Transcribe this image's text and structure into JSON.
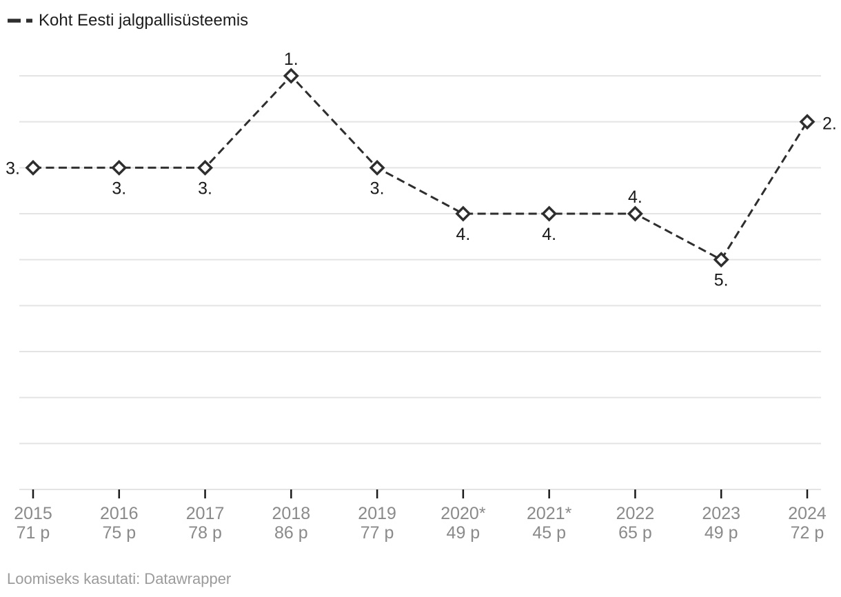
{
  "legend": {
    "label": "Koht Eesti jalgpallisüsteemis"
  },
  "footer": {
    "text": "Loomiseks kasutati: Datawrapper"
  },
  "colors": {
    "line": "#2e2e2e",
    "marker_fill": "#ffffff",
    "point_label": "#1a1a1a",
    "axis_label": "#8a8a8a",
    "gridline": "#e4e4e4",
    "tick": "#1a1a1a",
    "legend_text": "#1d1d1d",
    "footer_text": "#9b9b9b",
    "background": "#ffffff"
  },
  "chart_data": {
    "type": "line",
    "title": "",
    "legend_position": "top-left",
    "categories": [
      "2015",
      "2016",
      "2017",
      "2018",
      "2019",
      "2020*",
      "2021*",
      "2022",
      "2023",
      "2024"
    ],
    "category_sublabels": [
      "71 p",
      "75 p",
      "78 p",
      "86 p",
      "77 p",
      "49 p",
      "45 p",
      "65 p",
      "49 p",
      "72 p"
    ],
    "series": [
      {
        "name": "Koht Eesti jalgpallisüsteemis",
        "values": [
          3,
          3,
          3,
          1,
          3,
          4,
          4,
          4,
          5,
          2
        ]
      }
    ],
    "point_labels": [
      "3.",
      "3.",
      "3.",
      "1.",
      "3.",
      "4.",
      "4.",
      "4.",
      "5.",
      "2."
    ],
    "point_label_placement": [
      "left",
      "below",
      "below",
      "above",
      "below",
      "below",
      "below",
      "above",
      "below",
      "right"
    ],
    "y_axis": {
      "min": 1,
      "max": 10,
      "inverted": true,
      "tick_labels_visible": false,
      "gridlines": true
    },
    "x_axis": {
      "ticks_visible": true
    },
    "line_style": {
      "dashed": true,
      "marker": "open-diamond"
    }
  }
}
